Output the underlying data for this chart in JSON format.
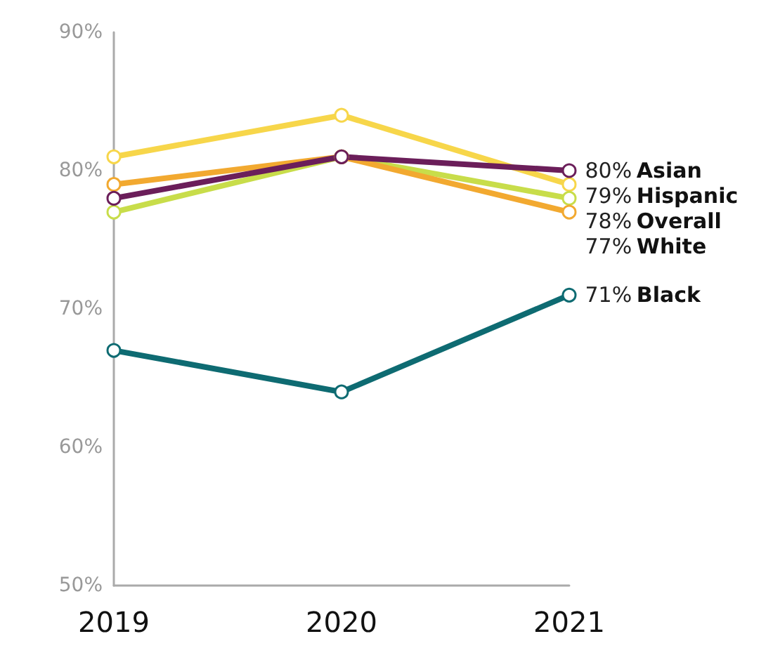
{
  "chart_data": {
    "type": "line",
    "categories": [
      "2019",
      "2020",
      "2021"
    ],
    "ylim": [
      50,
      90
    ],
    "yticks": [
      {
        "value": 50,
        "label": "50%"
      },
      {
        "value": 60,
        "label": "60%"
      },
      {
        "value": 70,
        "label": "70%"
      },
      {
        "value": 80,
        "label": "80%"
      },
      {
        "value": 90,
        "label": "90%"
      }
    ],
    "grid": false,
    "legend": false,
    "marker": "circle",
    "series": [
      {
        "name": "Hispanic",
        "color": "#f7d64a",
        "values": [
          81,
          84,
          79
        ],
        "value_labels": [
          null,
          null,
          "79%"
        ]
      },
      {
        "name": "Overall",
        "color": "#c8dd4a",
        "values": [
          77,
          81,
          78
        ],
        "value_labels": [
          null,
          null,
          "78%"
        ]
      },
      {
        "name": "White",
        "color": "#f2a930",
        "values": [
          79,
          81,
          77
        ],
        "value_labels": [
          null,
          null,
          "77%"
        ]
      },
      {
        "name": "Black",
        "color": "#0e6b72",
        "values": [
          67,
          64,
          71
        ],
        "value_labels": [
          null,
          null,
          "71%"
        ]
      },
      {
        "name": "Asian",
        "color": "#6b1e5a",
        "values": [
          78,
          81,
          80
        ],
        "value_labels": [
          null,
          null,
          "80%"
        ]
      }
    ]
  }
}
